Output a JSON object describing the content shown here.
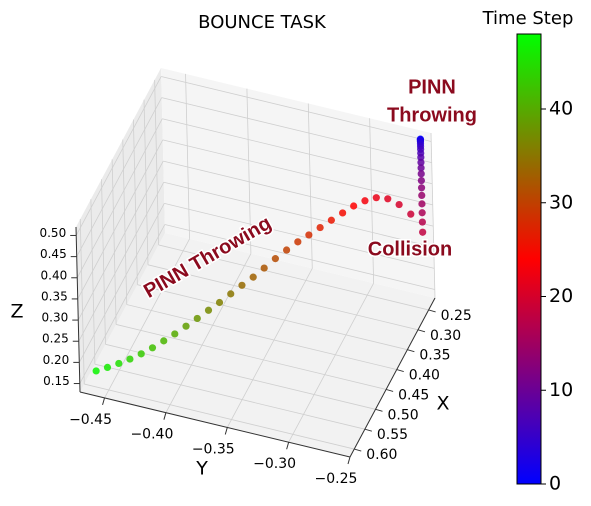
{
  "chart_data": {
    "type": "scatter3d",
    "title": "BOUNCE TASK",
    "xlabel": "X",
    "ylabel": "Y",
    "zlabel": "Z",
    "xlim": [
      0.22,
      0.62
    ],
    "ylim": [
      -0.47,
      -0.25
    ],
    "zlim": [
      0.13,
      0.52
    ],
    "xticks": [
      0.25,
      {
        "value": 0.3,
        "label": "0.30"
      },
      0.35,
      {
        "value": 0.4,
        "label": "0.40"
      },
      0.45,
      {
        "value": 0.5,
        "label": "0.50"
      },
      0.55,
      {
        "value": 0.6,
        "label": "0.60"
      }
    ],
    "yticks": [
      {
        "value": -0.45,
        "label": "−0.45"
      },
      {
        "value": -0.4,
        "label": "−0.40"
      },
      {
        "value": -0.35,
        "label": "−0.35"
      },
      {
        "value": -0.3,
        "label": "−0.30"
      },
      {
        "value": -0.25,
        "label": "−0.25"
      }
    ],
    "zticks": [
      0.15,
      {
        "value": 0.2,
        "label": "0.20"
      },
      0.25,
      {
        "value": 0.3,
        "label": "0.30"
      },
      0.35,
      {
        "value": 0.4,
        "label": "0.40"
      },
      0.45,
      {
        "value": 0.5,
        "label": "0.50"
      }
    ],
    "grid": true,
    "colormap": "brg",
    "colorbar": {
      "label": "Time Step",
      "clim": [
        0,
        48
      ],
      "ticks": [
        0,
        10,
        20,
        30,
        40
      ]
    },
    "points": {
      "t": [
        0,
        1,
        2,
        3,
        4,
        5,
        6,
        7,
        8,
        9,
        10,
        11,
        12,
        13,
        14,
        15,
        16,
        17,
        18,
        19,
        20,
        21,
        22,
        23,
        24,
        25,
        26,
        27,
        28,
        29,
        30,
        31,
        32,
        33,
        34,
        35,
        36,
        37,
        38,
        39,
        40,
        41,
        42,
        43,
        44,
        45,
        46,
        47
      ],
      "x": [
        0.23,
        0.23,
        0.23,
        0.23,
        0.23,
        0.23,
        0.23,
        0.23,
        0.23,
        0.23,
        0.23,
        0.23,
        0.23,
        0.23,
        0.23,
        0.23,
        0.23,
        0.23,
        0.23,
        0.243,
        0.256,
        0.268,
        0.281,
        0.294,
        0.307,
        0.319,
        0.332,
        0.345,
        0.358,
        0.37,
        0.383,
        0.396,
        0.409,
        0.421,
        0.434,
        0.447,
        0.46,
        0.472,
        0.485,
        0.498,
        0.511,
        0.523,
        0.536,
        0.549,
        0.562,
        0.574,
        0.587,
        0.6
      ],
      "y": [
        -0.257,
        -0.257,
        -0.257,
        -0.257,
        -0.257,
        -0.257,
        -0.257,
        -0.257,
        -0.257,
        -0.257,
        -0.257,
        -0.257,
        -0.257,
        -0.257,
        -0.257,
        -0.257,
        -0.257,
        -0.257,
        -0.257,
        -0.264,
        -0.271,
        -0.278,
        -0.285,
        -0.292,
        -0.299,
        -0.306,
        -0.313,
        -0.32,
        -0.327,
        -0.334,
        -0.341,
        -0.348,
        -0.355,
        -0.362,
        -0.369,
        -0.376,
        -0.383,
        -0.39,
        -0.397,
        -0.404,
        -0.411,
        -0.418,
        -0.425,
        -0.432,
        -0.439,
        -0.446,
        -0.453,
        -0.46
      ],
      "z": [
        0.51,
        0.509,
        0.507,
        0.504,
        0.499,
        0.493,
        0.486,
        0.477,
        0.467,
        0.455,
        0.442,
        0.428,
        0.412,
        0.395,
        0.377,
        0.357,
        0.336,
        0.314,
        0.29,
        0.34,
        0.37,
        0.39,
        0.4,
        0.4,
        0.395,
        0.385,
        0.375,
        0.365,
        0.355,
        0.345,
        0.333,
        0.32,
        0.305,
        0.29,
        0.278,
        0.265,
        0.252,
        0.24,
        0.228,
        0.217,
        0.206,
        0.196,
        0.187,
        0.18,
        0.175,
        0.171,
        0.169,
        0.168
      ]
    },
    "annotations": [
      {
        "lines": [
          "PINN",
          "Throwing"
        ]
      },
      {
        "lines": [
          "PINN Throwing"
        ]
      },
      {
        "lines": [
          "Collision"
        ]
      }
    ]
  }
}
